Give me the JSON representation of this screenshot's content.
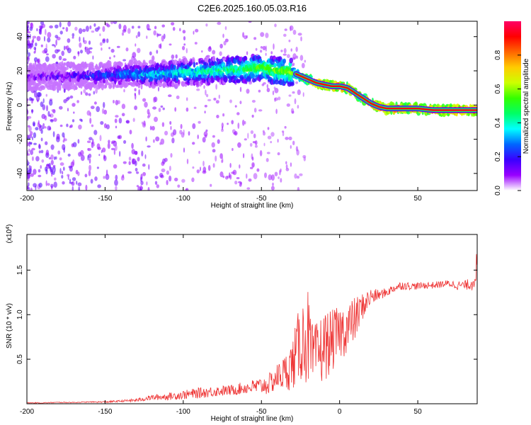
{
  "title": "C2E6.2025.160.05.03.R16",
  "chart_data": [
    {
      "type": "heatmap",
      "xlabel": "Height of straight line (km)",
      "ylabel": "Frequency (Hz)",
      "xlim": [
        -200,
        88
      ],
      "ylim": [
        -50,
        49
      ],
      "xticks": [
        -200,
        -150,
        -100,
        -50,
        0,
        50
      ],
      "yticks": [
        -40,
        -20,
        0,
        20,
        40
      ],
      "colorbar": {
        "label": "Normalized spectral amplitude",
        "range": [
          0.0,
          1.0
        ],
        "ticks": [
          "0.0",
          "0.2",
          "0.4",
          "0.6",
          "0.8"
        ],
        "colors": [
          "#ffffff",
          "#9900ff",
          "#3a00ff",
          "#0066ff",
          "#00ffff",
          "#00ff66",
          "#33ff00",
          "#ccff00",
          "#ffcc00",
          "#ff6600",
          "#ff0000",
          "#ff0066"
        ]
      },
      "ridge": {
        "x": [
          -200,
          -180,
          -160,
          -140,
          -120,
          -100,
          -80,
          -60,
          -50,
          -40,
          -30,
          -25,
          -20,
          -15,
          -10,
          -5,
          0,
          5,
          10,
          15,
          20,
          25,
          30,
          40,
          50,
          60,
          70,
          80,
          88
        ],
        "frequency": [
          16,
          17,
          17,
          18,
          18,
          19,
          20,
          21,
          22,
          20,
          19,
          17,
          15,
          13,
          12,
          11,
          11,
          10,
          7,
          4,
          1,
          -1,
          -2,
          -2,
          -2,
          -3,
          -3,
          -3,
          -3
        ],
        "amplitude": [
          0.1,
          0.15,
          0.2,
          0.3,
          0.35,
          0.4,
          0.45,
          0.5,
          0.55,
          0.55,
          0.6,
          0.65,
          0.8,
          0.9,
          0.9,
          0.95,
          0.95,
          0.9,
          0.85,
          0.85,
          0.9,
          0.95,
          0.95,
          0.9,
          0.9,
          0.9,
          0.95,
          0.95,
          0.95
        ]
      }
    },
    {
      "type": "line",
      "xlabel": "Height of straight line (km)",
      "ylabel": "SNR (10 * v/v)",
      "y_scale_label": "(x10^4)",
      "xlim": [
        -200,
        88
      ],
      "ylim": [
        0,
        1.9
      ],
      "xticks": [
        -200,
        -150,
        -100,
        -50,
        0,
        50
      ],
      "yticks": [
        0.5,
        1.0,
        1.5
      ],
      "line_color": "#ee3333",
      "series": [
        {
          "x": [
            -200,
            -190,
            -180,
            -170,
            -160,
            -150,
            -140,
            -130,
            -120,
            -110,
            -100,
            -90,
            -80,
            -70,
            -60,
            -50,
            -45,
            -40,
            -35,
            -30,
            -25,
            -20,
            -18,
            -15,
            -12,
            -10,
            -5,
            0,
            5,
            10,
            15,
            20,
            25,
            30,
            35,
            40,
            45,
            50,
            55,
            60,
            65,
            70,
            75,
            80,
            85,
            88
          ],
          "values": [
            0.01,
            0.01,
            0.015,
            0.015,
            0.02,
            0.02,
            0.03,
            0.04,
            0.07,
            0.08,
            0.1,
            0.12,
            0.14,
            0.15,
            0.18,
            0.2,
            0.22,
            0.3,
            0.35,
            0.45,
            0.7,
            0.75,
            0.5,
            0.55,
            0.6,
            0.65,
            0.7,
            0.8,
            0.85,
            0.95,
            1.1,
            1.2,
            1.22,
            1.25,
            1.3,
            1.33,
            1.32,
            1.32,
            1.33,
            1.33,
            1.34,
            1.35,
            1.33,
            1.33,
            1.35,
            1.55
          ],
          "spread": [
            0.005,
            0.005,
            0.005,
            0.005,
            0.005,
            0.01,
            0.01,
            0.02,
            0.03,
            0.04,
            0.05,
            0.06,
            0.06,
            0.06,
            0.07,
            0.1,
            0.12,
            0.15,
            0.2,
            0.3,
            0.45,
            0.55,
            0.4,
            0.35,
            0.4,
            0.4,
            0.35,
            0.3,
            0.3,
            0.25,
            0.15,
            0.1,
            0.06,
            0.05,
            0.05,
            0.05,
            0.04,
            0.04,
            0.04,
            0.04,
            0.04,
            0.04,
            0.05,
            0.05,
            0.08,
            0.2
          ]
        }
      ]
    }
  ]
}
